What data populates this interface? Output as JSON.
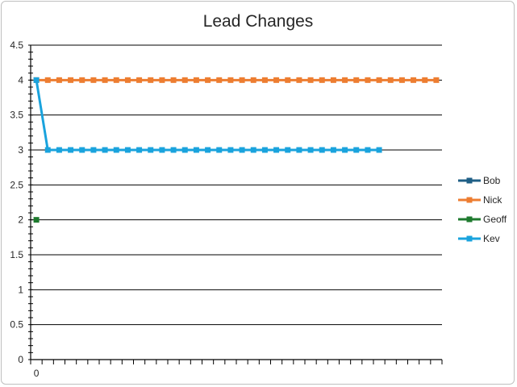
{
  "chart_data": {
    "type": "line",
    "title": "Lead Changes",
    "xlabel": "",
    "ylabel": "",
    "ylim": [
      0,
      4.5
    ],
    "y_ticks": [
      "0",
      "0.5",
      "1",
      "1.5",
      "2",
      "2.5",
      "3",
      "3.5",
      "4",
      "4.5"
    ],
    "x_tick_labels": [
      "0"
    ],
    "x_categories": 36,
    "grid": true,
    "legend_position": "right",
    "series": [
      {
        "name": "Bob",
        "color": "#1f5f86",
        "values": []
      },
      {
        "name": "Nick",
        "color": "#ed7d31",
        "values": [
          4,
          4,
          4,
          4,
          4,
          4,
          4,
          4,
          4,
          4,
          4,
          4,
          4,
          4,
          4,
          4,
          4,
          4,
          4,
          4,
          4,
          4,
          4,
          4,
          4,
          4,
          4,
          4,
          4,
          4,
          4,
          4,
          4,
          4,
          4,
          4
        ]
      },
      {
        "name": "Geoff",
        "color": "#1e7a2e",
        "values": [
          2
        ]
      },
      {
        "name": "Kev",
        "color": "#1aa3dd",
        "values": [
          4,
          3,
          3,
          3,
          3,
          3,
          3,
          3,
          3,
          3,
          3,
          3,
          3,
          3,
          3,
          3,
          3,
          3,
          3,
          3,
          3,
          3,
          3,
          3,
          3,
          3,
          3,
          3,
          3,
          3,
          3
        ]
      }
    ]
  }
}
